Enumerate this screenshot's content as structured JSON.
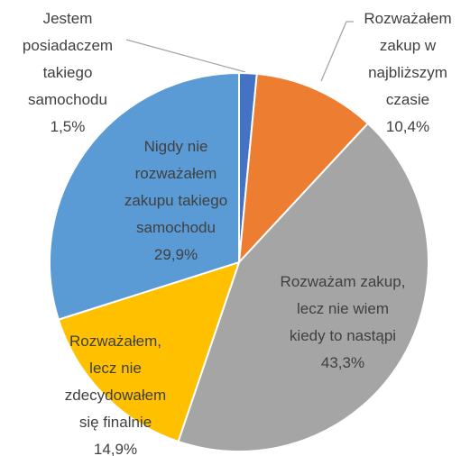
{
  "chart_data": {
    "type": "pie",
    "categories": [
      "Jestem posiadaczem takiego samochodu",
      "Rozważałem zakup w najbliższym czasie",
      "Rozważam zakup, lecz nie wiem kiedy to nastąpi",
      "Rozważałem, lecz nie zdecydowałem się finalnie",
      "Nigdy nie rozważałem zakupu takiego samochodu"
    ],
    "values": [
      1.5,
      10.4,
      43.3,
      14.9,
      29.9
    ],
    "value_labels": [
      "1,5%",
      "10,4%",
      "43,3%",
      "14,9%",
      "29,9%"
    ],
    "colors": [
      "#4472c4",
      "#ed7d31",
      "#a5a5a5",
      "#ffc000",
      "#5b9bd5"
    ]
  }
}
